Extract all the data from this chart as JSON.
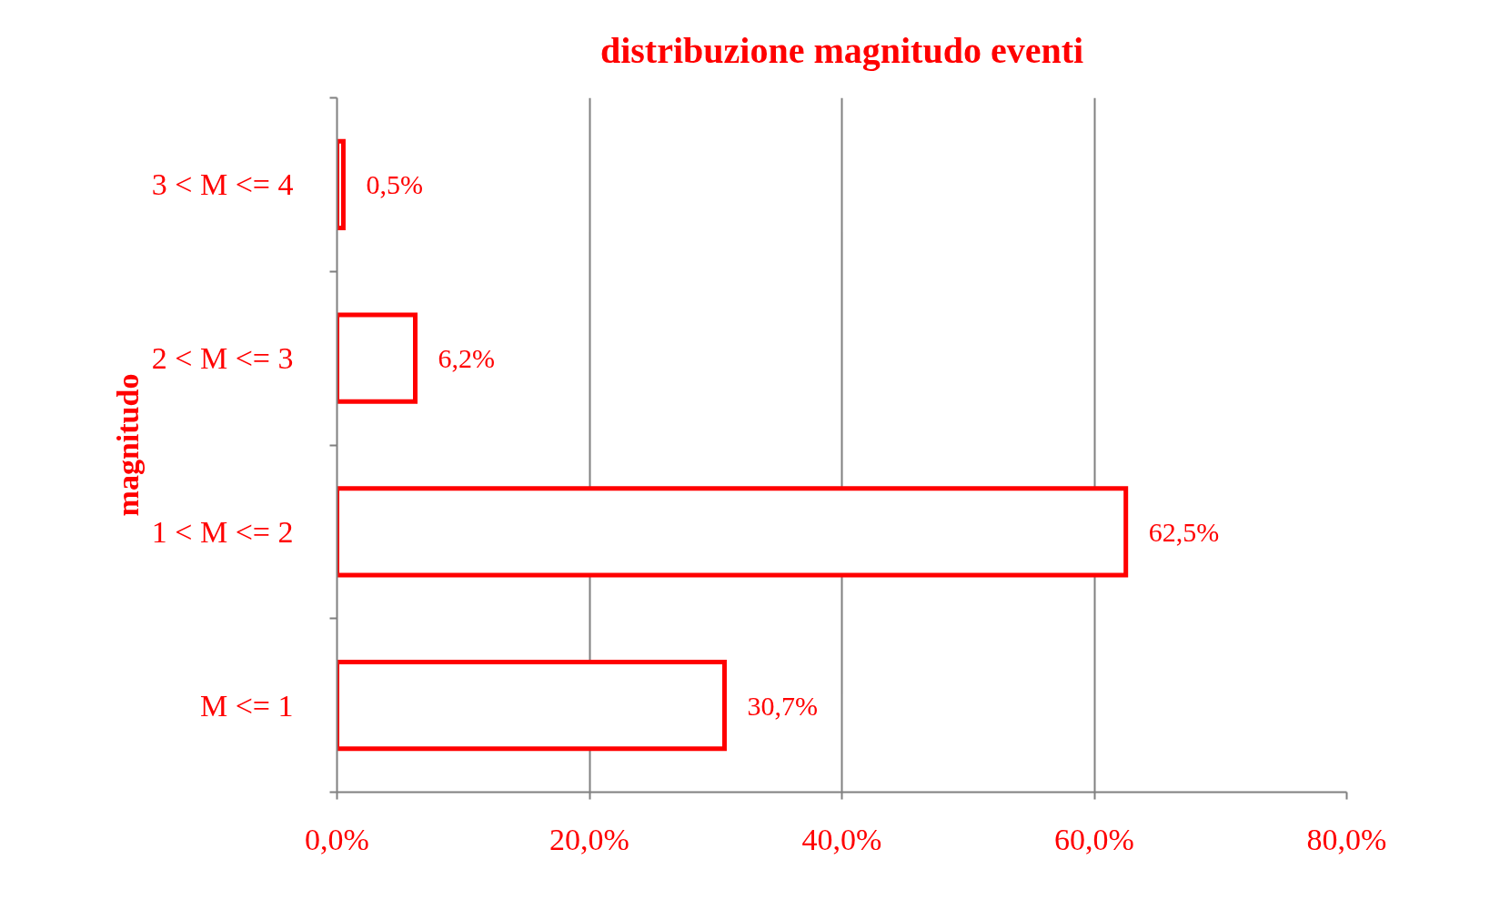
{
  "chart_data": {
    "type": "bar",
    "orientation": "horizontal",
    "title": "distribuzione magnitudo eventi",
    "ylabel": "magnitudo",
    "categories": [
      "3 < M <= 4",
      "2 < M <= 3",
      "1 < M <= 2",
      "M <= 1"
    ],
    "series": [
      {
        "color": "#ff0000",
        "values": [
          0.5,
          6.2,
          62.5,
          30.7
        ],
        "value_labels": [
          "0,5%",
          "6,2%",
          "62,5%",
          "30,7%"
        ]
      }
    ],
    "xlim": [
      0,
      80
    ],
    "xticks": [
      {
        "value": 0,
        "label": "0,0%"
      },
      {
        "value": 20,
        "label": "20,0%"
      },
      {
        "value": 40,
        "label": "40,0%"
      },
      {
        "value": 60,
        "label": "60,0%"
      },
      {
        "value": 80,
        "label": "80,0%"
      }
    ],
    "grid": "x"
  }
}
